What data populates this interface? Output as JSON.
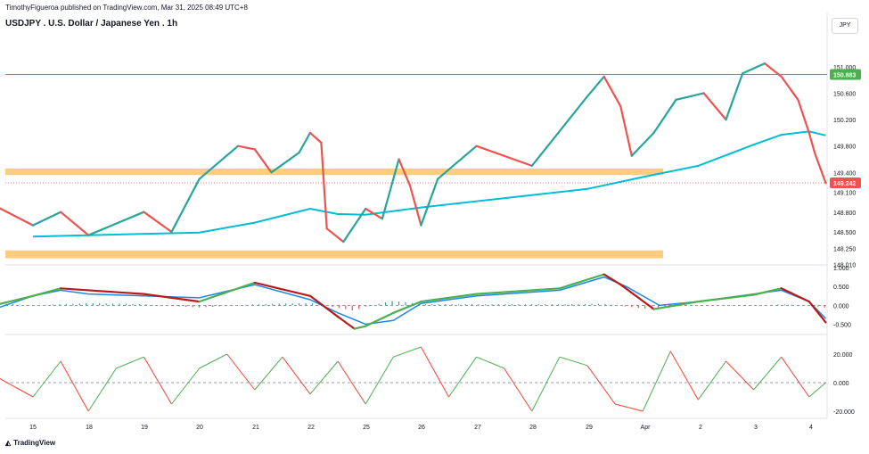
{
  "header": {
    "publisher_line": "TimothyFigueroa published on TradingView.com, Mar 31, 2025 08:49 UTC+8",
    "symbol_title": "USDJPY . U.S. Dollar / Japanese Yen . 1h",
    "currency_button": "JPY"
  },
  "footer": {
    "brand": "TradingView"
  },
  "colors": {
    "up": "#26a69a",
    "down": "#ef5350",
    "ma": "#00bcd4",
    "zone": "#ffcc80",
    "resistance_line": "#4caf50",
    "macd_line": "#1e88e5",
    "signal_up": "#4caf50",
    "signal_down": "#b71c1c",
    "osc_up": "#4caf50",
    "osc_down": "#f44336"
  },
  "chart_data": [
    {
      "type": "candlestick",
      "title": "USDJPY . U.S. Dollar / Japanese Yen . 1h",
      "ylim": [
        148.0,
        151.2
      ],
      "y_ticks": [
        "151.000",
        "150.600",
        "150.200",
        "149.800",
        "149.400",
        "149.100",
        "148.800",
        "148.500",
        "148.250",
        "148.010"
      ],
      "y_tick_values": [
        151.0,
        150.6,
        150.2,
        149.8,
        149.4,
        149.1,
        148.8,
        148.5,
        148.25,
        148.01
      ],
      "x_ticks": [
        "15",
        "18",
        "19",
        "20",
        "21",
        "22",
        "25",
        "26",
        "27",
        "28",
        "29",
        "Apr",
        "2",
        "3",
        "4"
      ],
      "price_labels": {
        "resistance": "150.883",
        "current": "149.242"
      },
      "resistance_level": 150.883,
      "current_price": 149.242,
      "zones": [
        {
          "from": 149.36,
          "to": 149.46
        },
        {
          "from": 148.1,
          "to": 148.22
        }
      ],
      "moving_average_path": [
        [
          15,
          148.43
        ],
        [
          18,
          148.49
        ],
        [
          19,
          148.64
        ],
        [
          20,
          148.85
        ],
        [
          20.5,
          148.77
        ],
        [
          21,
          148.76
        ],
        [
          22,
          148.87
        ],
        [
          25,
          149.15
        ],
        [
          26,
          149.33
        ],
        [
          27,
          149.5
        ],
        [
          28,
          149.82
        ],
        [
          28.5,
          149.97
        ],
        [
          29,
          150.02
        ],
        [
          29.3,
          149.96
        ]
      ],
      "price_path": [
        [
          14.3,
          148.9
        ],
        [
          15,
          148.6
        ],
        [
          15.5,
          148.8
        ],
        [
          16,
          148.45
        ],
        [
          17,
          148.8
        ],
        [
          17.5,
          148.5
        ],
        [
          18,
          149.3
        ],
        [
          18.7,
          149.8
        ],
        [
          19,
          149.75
        ],
        [
          19.3,
          149.4
        ],
        [
          19.8,
          149.7
        ],
        [
          20,
          150.0
        ],
        [
          20.2,
          149.85
        ],
        [
          20.3,
          148.55
        ],
        [
          20.6,
          148.35
        ],
        [
          21,
          148.85
        ],
        [
          21.3,
          148.7
        ],
        [
          21.6,
          149.6
        ],
        [
          21.8,
          149.2
        ],
        [
          22,
          148.6
        ],
        [
          22.3,
          149.3
        ],
        [
          23,
          149.8
        ],
        [
          24,
          149.5
        ],
        [
          25,
          150.55
        ],
        [
          25.3,
          150.85
        ],
        [
          25.6,
          150.4
        ],
        [
          25.8,
          149.65
        ],
        [
          26.2,
          150.0
        ],
        [
          26.6,
          150.5
        ],
        [
          27.1,
          150.6
        ],
        [
          27.5,
          150.2
        ],
        [
          27.8,
          150.9
        ],
        [
          28.2,
          151.05
        ],
        [
          28.5,
          150.85
        ],
        [
          28.8,
          150.5
        ],
        [
          29,
          150.0
        ],
        [
          29.1,
          149.7
        ],
        [
          29.3,
          149.24
        ]
      ]
    },
    {
      "type": "line",
      "ylim": [
        -0.7,
        1.0
      ],
      "y_ticks": [
        "1.000",
        "0.500",
        "0.000",
        "-0.500"
      ],
      "y_tick_values": [
        1.0,
        0.5,
        0.0,
        -0.5
      ],
      "series": [
        {
          "values_path": [
            [
              14.3,
              -0.1
            ],
            [
              15,
              0.25
            ],
            [
              15.5,
              0.4
            ],
            [
              16,
              0.3
            ],
            [
              17,
              0.25
            ],
            [
              18,
              0.2
            ],
            [
              19,
              0.55
            ],
            [
              20,
              0.15
            ],
            [
              20.5,
              -0.2
            ],
            [
              21,
              -0.5
            ],
            [
              21.5,
              -0.4
            ],
            [
              22,
              0.05
            ],
            [
              23,
              0.25
            ],
            [
              24.5,
              0.4
            ],
            [
              25.3,
              0.75
            ],
            [
              25.7,
              0.5
            ],
            [
              26.3,
              0.0
            ],
            [
              27,
              0.1
            ],
            [
              28,
              0.3
            ],
            [
              28.5,
              0.4
            ],
            [
              29,
              0.1
            ],
            [
              29.3,
              -0.35
            ]
          ]
        },
        {
          "values_path": [
            [
              14.3,
              0.0
            ],
            [
              15,
              0.25
            ],
            [
              15.5,
              0.45
            ],
            [
              16,
              0.4
            ],
            [
              17,
              0.3
            ],
            [
              18,
              0.1
            ],
            [
              19,
              0.6
            ],
            [
              20,
              0.25
            ],
            [
              20.5,
              -0.3
            ],
            [
              20.8,
              -0.62
            ],
            [
              21,
              -0.55
            ],
            [
              21.5,
              -0.2
            ],
            [
              22,
              0.1
            ],
            [
              23,
              0.3
            ],
            [
              24.5,
              0.45
            ],
            [
              25.3,
              0.82
            ],
            [
              25.6,
              0.55
            ],
            [
              26.2,
              -0.1
            ],
            [
              27,
              0.1
            ],
            [
              28,
              0.28
            ],
            [
              28.5,
              0.45
            ],
            [
              29,
              0.1
            ],
            [
              29.3,
              -0.45
            ]
          ]
        }
      ]
    },
    {
      "type": "line",
      "ylim": [
        -25,
        25
      ],
      "y_ticks": [
        "20.000",
        "0.000",
        "-20.000"
      ],
      "y_tick_values": [
        20,
        0,
        -20
      ],
      "series": [
        {
          "values_path": [
            [
              14.3,
              5
            ],
            [
              15,
              -10
            ],
            [
              15.5,
              15
            ],
            [
              16,
              -20
            ],
            [
              16.5,
              10
            ],
            [
              17,
              18
            ],
            [
              17.5,
              -15
            ],
            [
              18,
              10
            ],
            [
              18.5,
              20
            ],
            [
              19,
              -5
            ],
            [
              19.5,
              18
            ],
            [
              20,
              -8
            ],
            [
              20.5,
              15
            ],
            [
              21,
              -15
            ],
            [
              21.5,
              18
            ],
            [
              22,
              25
            ],
            [
              22.5,
              -10
            ],
            [
              23,
              18
            ],
            [
              23.5,
              10
            ],
            [
              24,
              -20
            ],
            [
              24.5,
              18
            ],
            [
              25,
              12
            ],
            [
              25.5,
              -15
            ],
            [
              26,
              -20
            ],
            [
              26.5,
              22
            ],
            [
              27,
              -12
            ],
            [
              27.5,
              15
            ],
            [
              28,
              -5
            ],
            [
              28.5,
              18
            ],
            [
              29,
              -10
            ],
            [
              29.3,
              0
            ]
          ]
        }
      ]
    }
  ]
}
